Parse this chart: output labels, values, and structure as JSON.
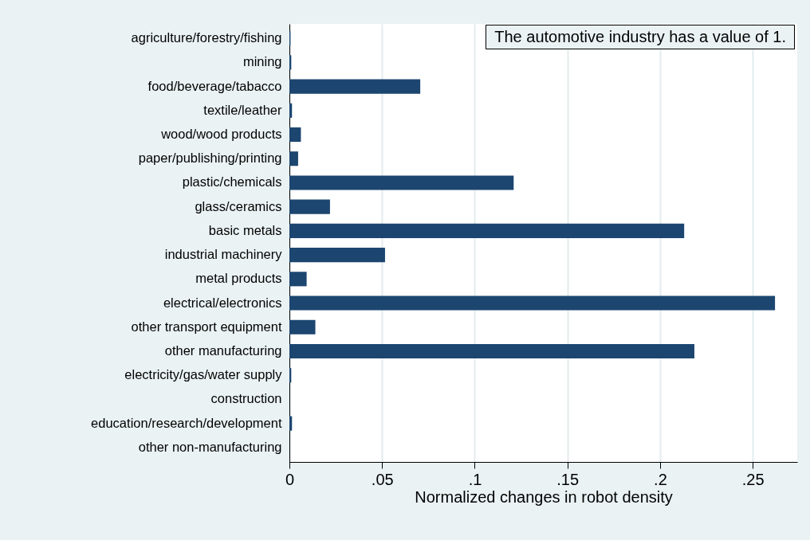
{
  "chart_data": {
    "type": "bar",
    "orientation": "horizontal",
    "xlabel": "Normalized changes in robot density",
    "categories": [
      "agriculture/forestry/fishing",
      "mining",
      "food/beverage/tabacco",
      "textile/leather",
      "wood/wood products",
      "paper/publishing/printing",
      "plastic/chemicals",
      "glass/ceramics",
      "basic metals",
      "industrial machinery",
      "metal products",
      "electrical/electronics",
      "other transport equipment",
      "other manufacturing",
      "electricity/gas/water supply",
      "construction",
      "education/research/development",
      "other non-manufacturing"
    ],
    "values": [
      0.0006,
      0.001,
      0.0706,
      0.0014,
      0.0062,
      0.0047,
      0.121,
      0.0219,
      0.213,
      0.0516,
      0.0093,
      0.262,
      0.014,
      0.2185,
      0.001,
      0,
      0.0014,
      0
    ],
    "color": "#1c4670",
    "xlim": [
      0,
      0.274
    ],
    "xticks": [
      {
        "value": 0,
        "label": "0"
      },
      {
        "value": 0.05,
        "label": ".05"
      },
      {
        "value": 0.1,
        "label": ".1"
      },
      {
        "value": 0.15,
        "label": ".15"
      },
      {
        "value": 0.2,
        "label": ".2"
      },
      {
        "value": 0.25,
        "label": ".25"
      }
    ],
    "grid": "x",
    "annotations": [
      "The automotive industry has a value of 1."
    ]
  }
}
